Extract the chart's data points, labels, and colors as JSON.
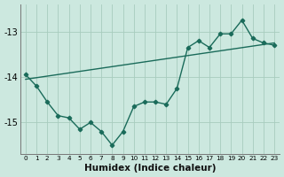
{
  "title": "",
  "xlabel": "Humidex (Indice chaleur)",
  "ylabel": "",
  "bg_color": "#cce8df",
  "line_color": "#1a6b5a",
  "grid_color": "#a8ccbe",
  "xlim": [
    -0.5,
    23.5
  ],
  "ylim": [
    -15.7,
    -12.4
  ],
  "yticks": [
    -15,
    -14,
    -13
  ],
  "xtick_labels": [
    "0",
    "1",
    "2",
    "3",
    "4",
    "5",
    "6",
    "7",
    "8",
    "9",
    "10",
    "11",
    "12",
    "13",
    "14",
    "15",
    "16",
    "17",
    "18",
    "19",
    "20",
    "21",
    "22",
    "23"
  ],
  "series1_x": [
    0,
    1,
    2,
    3,
    4,
    5,
    6,
    7,
    8,
    9,
    10,
    11,
    12,
    13,
    14,
    15,
    16,
    17,
    18,
    19,
    20,
    21,
    22,
    23
  ],
  "series1_y": [
    -13.95,
    -14.2,
    -14.55,
    -14.85,
    -14.9,
    -15.15,
    -15.0,
    -15.2,
    -15.5,
    -15.2,
    -14.65,
    -14.55,
    -14.55,
    -14.6,
    -14.25,
    -13.35,
    -13.2,
    -13.35,
    -13.05,
    -13.05,
    -12.75,
    -13.15,
    -13.25,
    -13.3
  ],
  "series2_x": [
    0,
    23
  ],
  "series2_y": [
    -14.05,
    -13.25
  ]
}
